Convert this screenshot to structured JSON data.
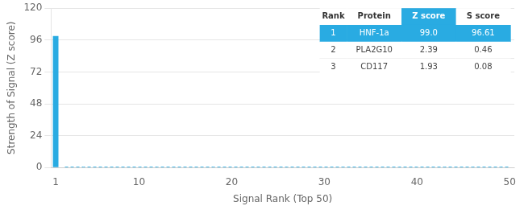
{
  "chart_data": {
    "type": "bar",
    "xlabel": "Signal Rank (Top 50)",
    "ylabel": "Strength of Signal (Z score)",
    "x": [
      1,
      2,
      3,
      4,
      5,
      6,
      7,
      8,
      9,
      10,
      11,
      12,
      13,
      14,
      15,
      16,
      17,
      18,
      19,
      20,
      21,
      22,
      23,
      24,
      25,
      26,
      27,
      28,
      29,
      30,
      31,
      32,
      33,
      34,
      35,
      36,
      37,
      38,
      39,
      40,
      41,
      42,
      43,
      44,
      45,
      46,
      47,
      48,
      49,
      50
    ],
    "series": [
      {
        "type": "bar",
        "color": "#29abe2",
        "values": [
          99.0,
          null,
          null,
          null,
          null,
          null,
          null,
          null,
          null,
          null,
          null,
          null,
          null,
          null,
          null,
          null,
          null,
          null,
          null,
          null,
          null,
          null,
          null,
          null,
          null,
          null,
          null,
          null,
          null,
          null,
          null,
          null,
          null,
          null,
          null,
          null,
          null,
          null,
          null,
          null,
          null,
          null,
          null,
          null,
          null,
          null,
          null,
          null,
          null,
          null
        ]
      },
      {
        "type": "line",
        "color": "#29abe2",
        "line_style": "dashed",
        "values": [
          null,
          0.3,
          0.3,
          0.3,
          0.3,
          0.3,
          0.3,
          0.3,
          0.3,
          0.3,
          0.3,
          0.3,
          0.3,
          0.3,
          0.3,
          0.3,
          0.3,
          0.3,
          0.3,
          0.3,
          0.3,
          0.3,
          0.3,
          0.3,
          0.3,
          0.3,
          0.3,
          0.3,
          0.3,
          0.3,
          0.3,
          0.3,
          0.3,
          0.3,
          0.3,
          0.3,
          0.3,
          0.3,
          0.3,
          0.3,
          0.3,
          0.3,
          0.3,
          0.3,
          0.3,
          0.3,
          0.3,
          0.3,
          0.3,
          0.3
        ]
      }
    ],
    "xlim": [
      0.5,
      50.5
    ],
    "xticks": [
      1,
      10,
      20,
      30,
      40,
      50
    ],
    "ylim": [
      0,
      120
    ],
    "yticks": [
      0,
      24,
      48,
      72,
      96,
      120
    ],
    "grid": true,
    "table": {
      "headers": [
        "Rank",
        "Protein",
        "Z score",
        "S score"
      ],
      "rows": [
        [
          "1",
          "HNF-1a",
          "99.0",
          "96.61"
        ],
        [
          "2",
          "PLA2G10",
          "2.39",
          "0.46"
        ],
        [
          "3",
          "CD117",
          "1.93",
          "0.08"
        ]
      ]
    }
  }
}
